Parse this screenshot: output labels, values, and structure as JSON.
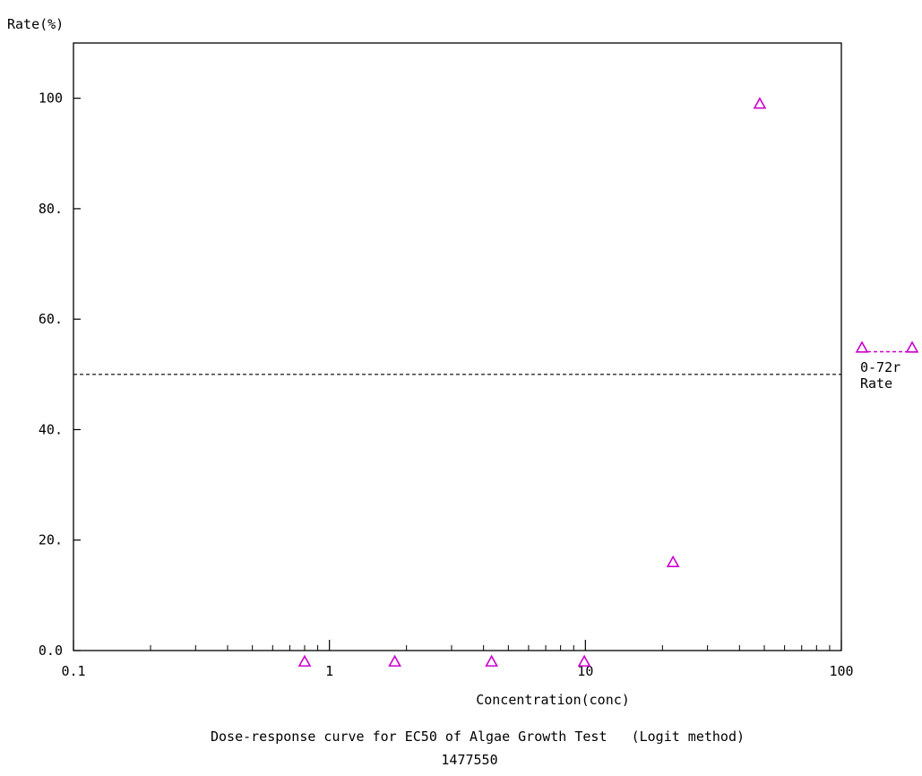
{
  "chart_data": {
    "type": "scatter",
    "ylabel": "Rate(%)",
    "xlabel": "Concentration(conc)",
    "caption": "Dose-response curve for EC50 of Algae Growth Test   (Logit method)",
    "caption_id": "1477550",
    "x_scale": "log",
    "xlim": [
      0.1,
      100
    ],
    "ylim": [
      0,
      110
    ],
    "x_ticks": [
      {
        "value": 0.1,
        "label": "0.1"
      },
      {
        "value": 1,
        "label": "1"
      },
      {
        "value": 10,
        "label": "10"
      },
      {
        "value": 100,
        "label": "100"
      }
    ],
    "y_ticks": [
      {
        "value": 0,
        "label": "0.0"
      },
      {
        "value": 20,
        "label": "20."
      },
      {
        "value": 40,
        "label": "40."
      },
      {
        "value": 60,
        "label": "60."
      },
      {
        "value": 80,
        "label": "80."
      },
      {
        "value": 100,
        "label": "100"
      }
    ],
    "reference_line": {
      "y": 50,
      "style": "dashed"
    },
    "grid": false,
    "legend_position": "right",
    "series": [
      {
        "name": "0-72r Rate",
        "legend_lines": [
          "0-72r",
          "Rate"
        ],
        "marker": "triangle-open",
        "color": "#cc00cc",
        "points": [
          {
            "x": 0.8,
            "y": -2
          },
          {
            "x": 1.8,
            "y": -2
          },
          {
            "x": 4.3,
            "y": -2
          },
          {
            "x": 9.9,
            "y": -2
          },
          {
            "x": 22,
            "y": 16
          },
          {
            "x": 48,
            "y": 99
          }
        ]
      }
    ]
  }
}
